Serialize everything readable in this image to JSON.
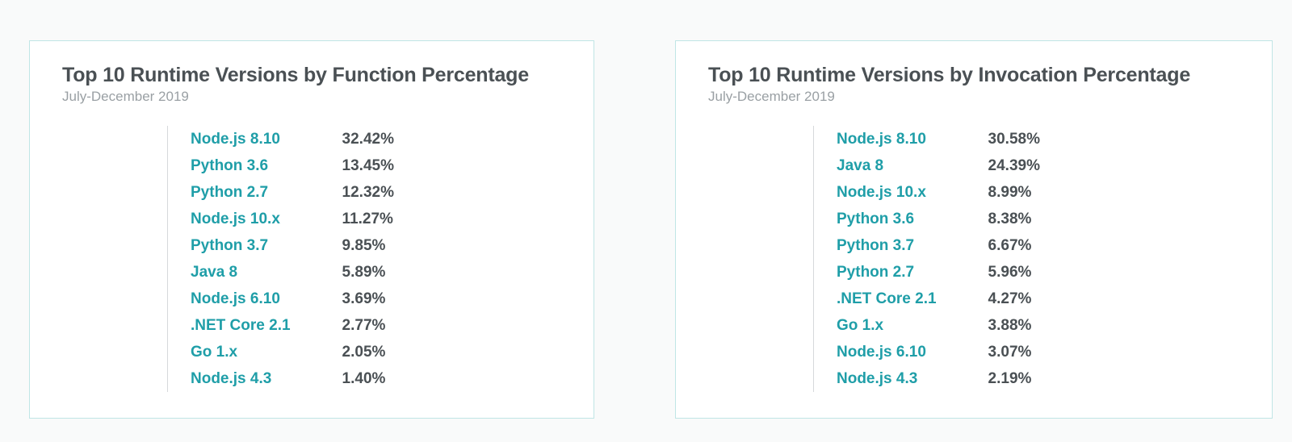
{
  "page": {
    "background_color": "#f9fafa",
    "card_border_color": "#c0e5e5",
    "card_background": "#ffffff",
    "rule_color": "#d6d9db"
  },
  "typography": {
    "title_fontsize": 25,
    "title_color": "#4a5054",
    "subtitle_fontsize": 17,
    "subtitle_color": "#9aa0a4",
    "name_fontsize": 19,
    "name_color": "#1f9ea8",
    "value_fontsize": 19,
    "value_color": "#4a5054",
    "row_lineheight": 33
  },
  "panels": [
    {
      "title": "Top 10 Runtime Versions by Function Percentage",
      "subtitle": "July-December 2019",
      "rows": [
        {
          "name": "Node.js 8.10",
          "value": "32.42%"
        },
        {
          "name": "Python 3.6",
          "value": "13.45%"
        },
        {
          "name": "Python 2.7",
          "value": "12.32%"
        },
        {
          "name": "Node.js 10.x",
          "value": "11.27%"
        },
        {
          "name": "Python 3.7",
          "value": "9.85%"
        },
        {
          "name": "Java 8",
          "value": "5.89%"
        },
        {
          "name": "Node.js 6.10",
          "value": "3.69%"
        },
        {
          "name": ".NET Core 2.1",
          "value": "2.77%"
        },
        {
          "name": "Go 1.x",
          "value": "2.05%"
        },
        {
          "name": "Node.js 4.3",
          "value": "1.40%"
        }
      ]
    },
    {
      "title": "Top 10 Runtime Versions by Invocation Percentage",
      "subtitle": "July-December 2019",
      "rows": [
        {
          "name": "Node.js 8.10",
          "value": "30.58%"
        },
        {
          "name": "Java 8",
          "value": "24.39%"
        },
        {
          "name": "Node.js 10.x",
          "value": "8.99%"
        },
        {
          "name": "Python 3.6",
          "value": "8.38%"
        },
        {
          "name": "Python 3.7",
          "value": "6.67%"
        },
        {
          "name": "Python 2.7",
          "value": "5.96%"
        },
        {
          "name": ".NET Core 2.1",
          "value": "4.27%"
        },
        {
          "name": "Go 1.x",
          "value": "3.88%"
        },
        {
          "name": "Node.js 6.10",
          "value": "3.07%"
        },
        {
          "name": "Node.js 4.3",
          "value": "2.19%"
        }
      ]
    }
  ]
}
